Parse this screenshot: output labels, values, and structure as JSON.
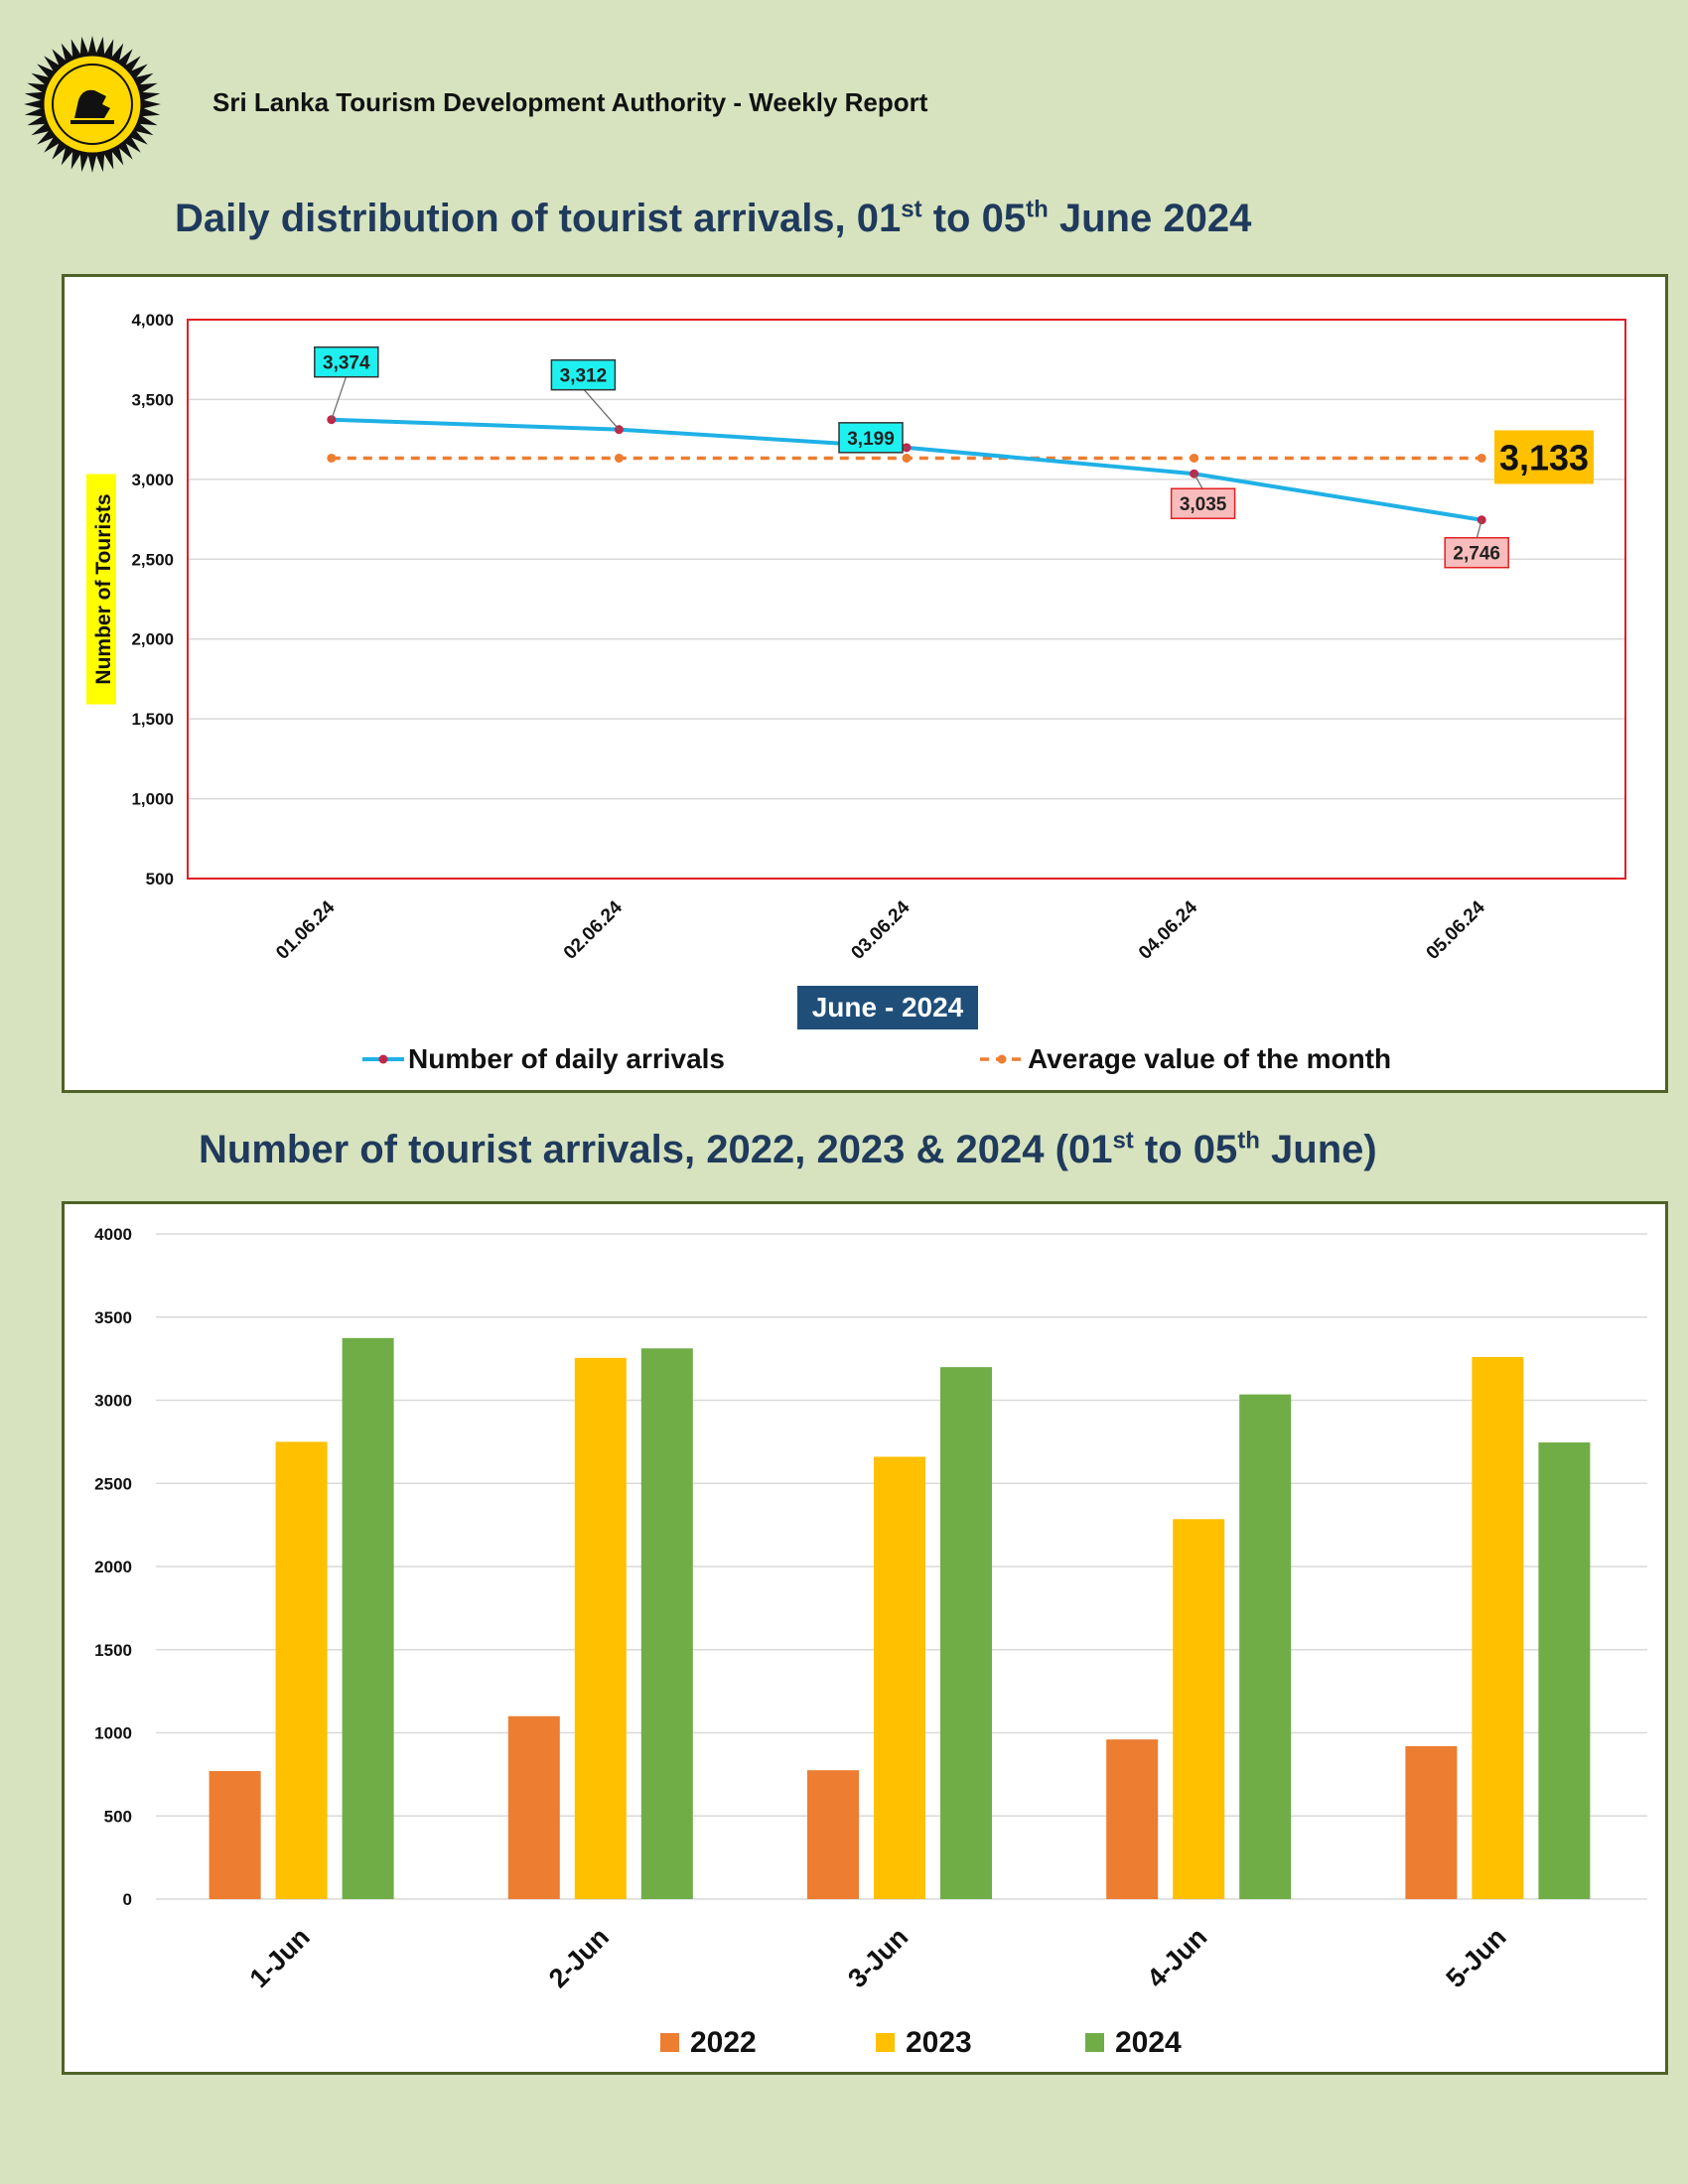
{
  "header": {
    "org_title": "Sri Lanka Tourism Development Authority - Weekly Report"
  },
  "charts_titles": {
    "line_title_main": "Daily distribution of tourist arrivals, 01",
    "line_title_sup1": "st",
    "line_title_mid": " to 05",
    "line_title_sup2": "th",
    "line_title_end": " June 2024",
    "bar_title_main": "Number of tourist arrivals, 2022, 2023 & 2024 (01",
    "bar_title_sup1": "st",
    "bar_title_mid": " to 05",
    "bar_title_sup2": "th",
    "bar_title_end": " June)"
  },
  "colors": {
    "background": "#d7e3bf",
    "title": "#1f3a5c",
    "daily_line": "#1fb1e6",
    "average_line": "#ed7d31",
    "label_cyan": "#1ef0f0",
    "label_pink": "#f8bcbc",
    "average_badge": "#ffc000",
    "c2022": "#ed7d31",
    "c2023": "#ffc000",
    "c2024": "#70ad47",
    "plot_border": "#e31e24"
  },
  "chart_data": [
    {
      "type": "line",
      "categories": [
        "01.06.24",
        "02.06.24",
        "03.06.24",
        "04.06.24",
        "05.06.24"
      ],
      "series": [
        {
          "name": "Number of daily arrivals",
          "values": [
            3374,
            3312,
            3199,
            3035,
            2746
          ]
        },
        {
          "name": "Average value of the month",
          "values": [
            3133,
            3133,
            3133,
            3133,
            3133
          ]
        }
      ],
      "data_labels": [
        "3,374",
        "3,312",
        "3,199",
        "3,035",
        "2,746"
      ],
      "average_label": "3,133",
      "xlabel": "June - 2024",
      "ylabel": "Number of Tourists",
      "ylim": [
        500,
        4000
      ],
      "yticks": [
        500,
        1000,
        1500,
        2000,
        2500,
        3000,
        3500,
        4000
      ],
      "ytick_labels": [
        "500",
        "1,000",
        "1,500",
        "2,000",
        "2,500",
        "3,000",
        "3,500",
        "4,000"
      ],
      "grid": true,
      "legend": "bottom"
    },
    {
      "type": "bar",
      "categories": [
        "1-Jun",
        "2-Jun",
        "3-Jun",
        "4-Jun",
        "5-Jun"
      ],
      "series": [
        {
          "name": "2022",
          "values": [
            770,
            1100,
            775,
            960,
            920
          ]
        },
        {
          "name": "2023",
          "values": [
            2750,
            3255,
            2660,
            2285,
            3260
          ]
        },
        {
          "name": "2024",
          "values": [
            3374,
            3312,
            3199,
            3035,
            2746
          ]
        }
      ],
      "ylim": [
        0,
        4000
      ],
      "yticks": [
        0,
        500,
        1000,
        1500,
        2000,
        2500,
        3000,
        3500,
        4000
      ],
      "grid": true,
      "legend": "bottom"
    }
  ]
}
